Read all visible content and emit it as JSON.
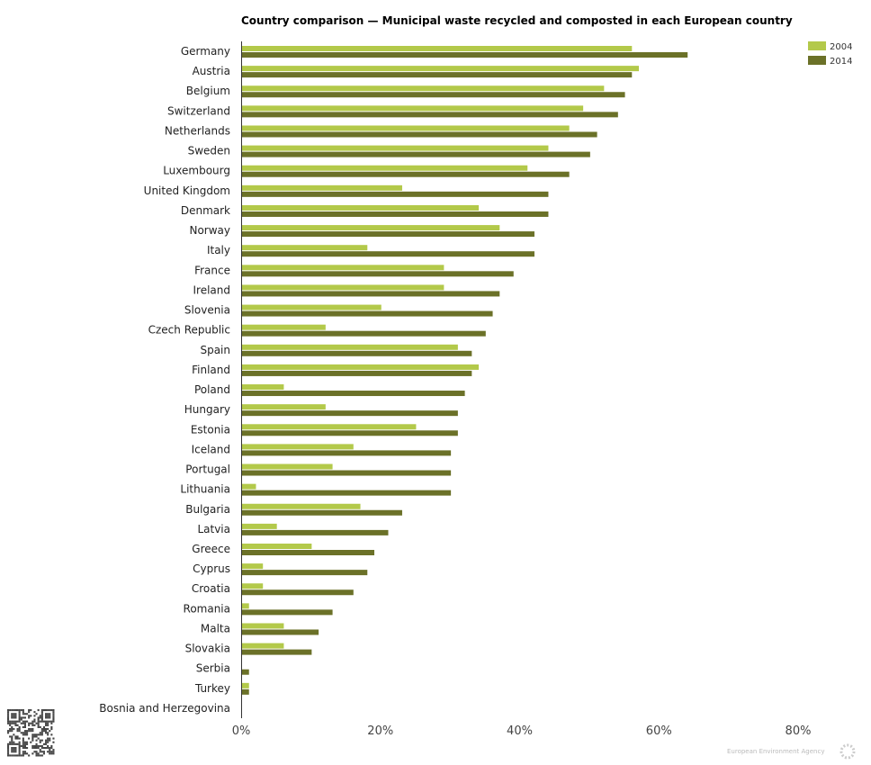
{
  "chart_data": {
    "type": "bar",
    "orientation": "horizontal",
    "title": "Country comparison — Municipal waste recycled and composted in each European country",
    "categories": [
      "Germany",
      "Austria",
      "Belgium",
      "Switzerland",
      "Netherlands",
      "Sweden",
      "Luxembourg",
      "United Kingdom",
      "Denmark",
      "Norway",
      "Italy",
      "France",
      "Ireland",
      "Slovenia",
      "Czech Republic",
      "Spain",
      "Finland",
      "Poland",
      "Hungary",
      "Estonia",
      "Iceland",
      "Portugal",
      "Lithuania",
      "Bulgaria",
      "Latvia",
      "Greece",
      "Cyprus",
      "Croatia",
      "Romania",
      "Malta",
      "Slovakia",
      "Serbia",
      "Turkey",
      "Bosnia and Herzegovina"
    ],
    "series": [
      {
        "name": "2004",
        "color": "#b3c94a",
        "values": [
          56,
          57,
          52,
          49,
          47,
          44,
          41,
          23,
          34,
          37,
          18,
          29,
          29,
          20,
          12,
          31,
          34,
          6,
          12,
          25,
          16,
          13,
          2,
          17,
          5,
          10,
          3,
          3,
          1,
          6,
          6,
          null,
          1,
          null
        ]
      },
      {
        "name": "2014",
        "color": "#6b7128",
        "values": [
          64,
          56,
          55,
          54,
          51,
          50,
          47,
          44,
          44,
          42,
          42,
          39,
          37,
          36,
          35,
          33,
          33,
          32,
          31,
          31,
          30,
          30,
          30,
          23,
          21,
          19,
          18,
          16,
          13,
          11,
          10,
          1,
          1,
          null
        ]
      }
    ],
    "xlim": [
      0,
      80
    ],
    "xticks": [
      "0%",
      "20%",
      "40%",
      "60%",
      "80%"
    ],
    "legend": "top-right",
    "grid": false,
    "watermark": "European Environment Agency"
  }
}
